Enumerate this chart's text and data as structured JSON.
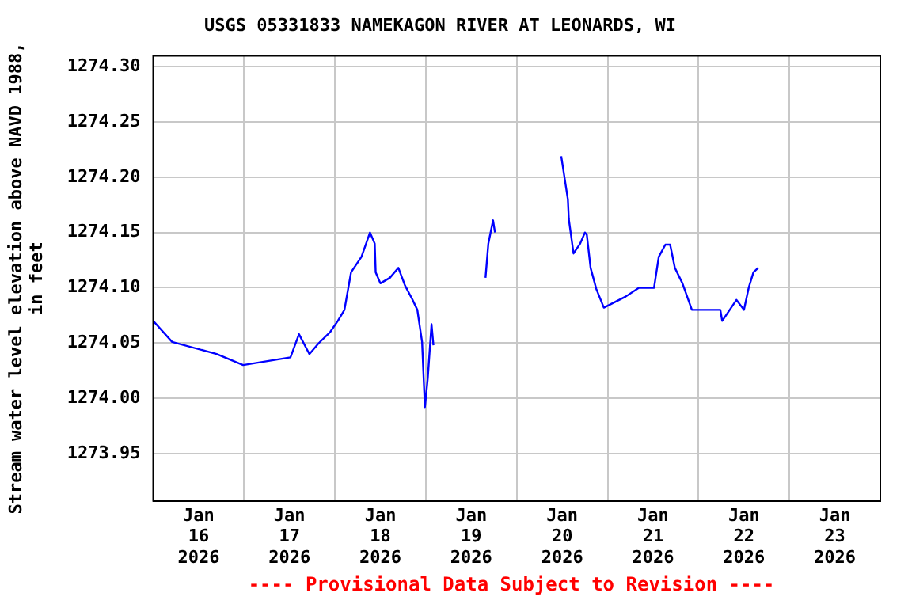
{
  "chart_data": {
    "type": "line",
    "title": "USGS 05331833 NAMEKAGON RIVER AT LEONARDS, WI",
    "ylabel": "Stream water level elevation above NAVD 1988, in feet",
    "annotations": [
      "---- Provisional Data Subject to Revision ----"
    ],
    "series": [
      {
        "color": "#0000ff",
        "x": [
          "2026-01-16T00:00",
          "2026-01-16T05:00",
          "2026-01-16T16:45",
          "2026-01-16T23:45",
          "2026-01-17T12:15",
          "2026-01-17T14:30",
          "2026-01-17T17:15",
          "2026-01-17T19:45",
          "2026-01-17T22:45",
          "2026-01-18T00:45",
          "2026-01-18T02:30",
          "2026-01-18T04:15",
          "2026-01-18T07:00",
          "2026-01-18T09:15",
          "2026-01-18T10:30",
          "2026-01-18T10:45",
          "2026-01-18T12:00",
          "2026-01-18T14:30",
          "2026-01-18T16:45",
          "2026-01-18T18:30",
          "2026-01-18T20:30",
          "2026-01-18T21:45",
          "2026-01-18T23:00",
          "2026-01-18T23:45",
          "2026-01-19T00:30",
          "2026-01-19T01:30",
          "2026-01-19T02:00",
          "2026-01-19T03:00",
          "2026-01-19T15:45",
          "2026-01-19T16:30",
          "2026-01-19T17:45",
          "2026-01-19T18:15",
          "2026-01-19T19:00",
          "2026-01-20T11:45",
          "2026-01-20T13:30",
          "2026-01-20T13:45",
          "2026-01-20T15:00",
          "2026-01-20T16:45",
          "2026-01-20T18:00",
          "2026-01-20T18:30",
          "2026-01-20T19:30",
          "2026-01-20T21:00",
          "2026-01-20T23:00",
          "2026-01-21T04:45",
          "2026-01-21T08:15",
          "2026-01-21T12:15",
          "2026-01-21T13:30",
          "2026-01-21T15:15",
          "2026-01-21T16:30",
          "2026-01-21T17:45",
          "2026-01-21T19:45",
          "2026-01-21T22:15",
          "2026-01-22T05:45",
          "2026-01-22T06:15",
          "2026-01-22T10:00",
          "2026-01-22T12:00",
          "2026-01-22T13:15",
          "2026-01-22T14:30",
          "2026-01-22T15:45"
        ],
        "values": [
          1274.07,
          1274.051,
          1274.04,
          1274.03,
          1274.037,
          1274.058,
          1274.04,
          1274.05,
          1274.06,
          1274.07,
          1274.08,
          1274.114,
          1274.128,
          1274.15,
          1274.14,
          1274.114,
          1274.104,
          1274.109,
          1274.118,
          1274.102,
          1274.089,
          1274.08,
          1274.051,
          1273.992,
          1274.018,
          1274.067,
          1274.048,
          null,
          1274.109,
          1274.14,
          1274.161,
          1274.15,
          null,
          1274.219,
          1274.18,
          1274.162,
          1274.131,
          1274.14,
          1274.15,
          1274.148,
          1274.118,
          1274.099,
          1274.082,
          1274.092,
          1274.1,
          1274.1,
          1274.128,
          1274.139,
          1274.139,
          1274.118,
          1274.104,
          1274.08,
          1274.08,
          1274.07,
          1274.089,
          1274.08,
          1274.1,
          1274.114,
          1274.118
        ]
      }
    ],
    "xlim": [
      "2026-01-16T00:00",
      "2026-01-24T00:00"
    ],
    "xticks": [
      {
        "value": "2026-01-16T12:00",
        "label": "Jan 16 2026"
      },
      {
        "value": "2026-01-17T00:00",
        "label": null
      },
      {
        "value": "2026-01-17T12:00",
        "label": "Jan 17 2026"
      },
      {
        "value": "2026-01-18T00:00",
        "label": null
      },
      {
        "value": "2026-01-18T12:00",
        "label": "Jan 18 2026"
      },
      {
        "value": "2026-01-19T00:00",
        "label": null
      },
      {
        "value": "2026-01-19T12:00",
        "label": "Jan 19 2026"
      },
      {
        "value": "2026-01-20T00:00",
        "label": null
      },
      {
        "value": "2026-01-20T12:00",
        "label": "Jan 20 2026"
      },
      {
        "value": "2026-01-21T00:00",
        "label": null
      },
      {
        "value": "2026-01-21T12:00",
        "label": "Jan 21 2026"
      },
      {
        "value": "2026-01-22T00:00",
        "label": null
      },
      {
        "value": "2026-01-22T12:00",
        "label": "Jan 22 2026"
      },
      {
        "value": "2026-01-23T00:00",
        "label": null
      },
      {
        "value": "2026-01-23T12:00",
        "label": "Jan 23 2026"
      }
    ],
    "ylim": [
      1273.907,
      1274.31
    ],
    "yticks": [
      {
        "value": 1273.95,
        "label": "1273.95"
      },
      {
        "value": 1274.0,
        "label": "1274.00"
      },
      {
        "value": 1274.05,
        "label": "1274.05"
      },
      {
        "value": 1274.1,
        "label": "1274.10"
      },
      {
        "value": 1274.15,
        "label": "1274.15"
      },
      {
        "value": 1274.2,
        "label": "1274.20"
      },
      {
        "value": 1274.25,
        "label": "1274.25"
      },
      {
        "value": 1274.3,
        "label": "1274.30"
      }
    ],
    "grid": true,
    "legend": false,
    "marker": "none",
    "line_style": "solid"
  }
}
